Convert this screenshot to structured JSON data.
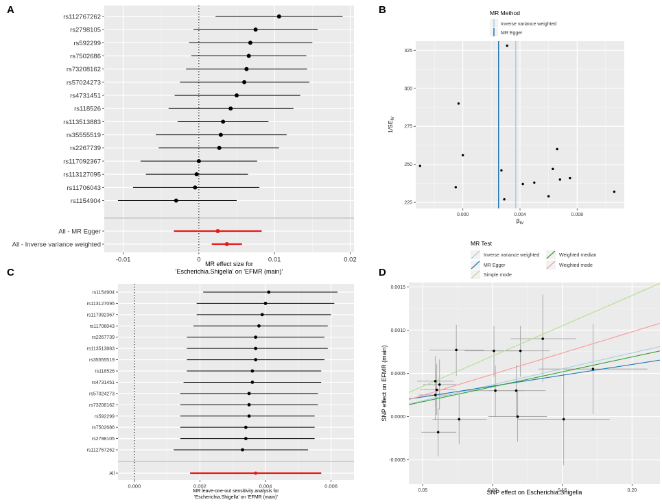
{
  "panels": {
    "A": {
      "letter": "A"
    },
    "B": {
      "letter": "B"
    },
    "C": {
      "letter": "C"
    },
    "D": {
      "letter": "D"
    }
  },
  "chart_data": [
    {
      "panel": "A",
      "type": "forest",
      "xlabel_line1": "MR effect size for",
      "xlabel_line2": "'Escherichia.Shigella' on 'EFMR (main)'",
      "xlim": [
        -0.0125,
        0.0205
      ],
      "xticks": [
        -0.01,
        0,
        0.01,
        0.02
      ],
      "xtick_labels": [
        "-0.01",
        "0",
        "0.01",
        "0.02"
      ],
      "reference_line": 0,
      "snps": [
        {
          "label": "rs112767262",
          "est": 0.0106,
          "lo": 0.0022,
          "hi": 0.019
        },
        {
          "label": "rs2798105",
          "est": 0.0075,
          "lo": -0.0007,
          "hi": 0.0157
        },
        {
          "label": "rs592299",
          "est": 0.0068,
          "lo": -0.0013,
          "hi": 0.015
        },
        {
          "label": "rs7502686",
          "est": 0.0066,
          "lo": -0.001,
          "hi": 0.0142
        },
        {
          "label": "rs73208162",
          "est": 0.0063,
          "lo": -0.0017,
          "hi": 0.0143
        },
        {
          "label": "rs57024273",
          "est": 0.006,
          "lo": -0.0025,
          "hi": 0.0146
        },
        {
          "label": "rs4731451",
          "est": 0.005,
          "lo": -0.0032,
          "hi": 0.0134
        },
        {
          "label": "rs118526",
          "est": 0.0042,
          "lo": -0.004,
          "hi": 0.0125
        },
        {
          "label": "rs113513883",
          "est": 0.0032,
          "lo": -0.0028,
          "hi": 0.0092
        },
        {
          "label": "rs35555519",
          "est": 0.0029,
          "lo": -0.0057,
          "hi": 0.0116
        },
        {
          "label": "rs2267739",
          "est": 0.0027,
          "lo": -0.0053,
          "hi": 0.0106
        },
        {
          "label": "rs117092367",
          "est": 0.0,
          "lo": -0.0077,
          "hi": 0.0077
        },
        {
          "label": "rs113127095",
          "est": -0.0003,
          "lo": -0.007,
          "hi": 0.0065
        },
        {
          "label": "rs11706043",
          "est": -0.0005,
          "lo": -0.0087,
          "hi": 0.008
        },
        {
          "label": "rs1154904",
          "est": -0.003,
          "lo": -0.0107,
          "hi": 0.005
        }
      ],
      "summary": [
        {
          "label": "All - MR Egger",
          "est": 0.0025,
          "lo": -0.0033,
          "hi": 0.0083
        },
        {
          "label": "All - Inverse variance weighted",
          "est": 0.0037,
          "lo": 0.0017,
          "hi": 0.0057
        }
      ],
      "colors": {
        "point": "#000000",
        "summary": "#e41a1c"
      }
    },
    {
      "panel": "B",
      "type": "scatter",
      "xlabel": "βIV",
      "xlabel_main": "β",
      "xlabel_sub": "IV",
      "ylabel": "1/SEIV",
      "ylabel_main": "1/SE",
      "ylabel_sub": "IV",
      "xlim": [
        -0.0033,
        0.0113
      ],
      "ylim": [
        221,
        331
      ],
      "xticks": [
        0.0,
        0.004,
        0.008
      ],
      "xtick_labels": [
        "0.000",
        "0.004",
        "0.008"
      ],
      "yticks": [
        225,
        250,
        275,
        300,
        325
      ],
      "ytick_labels": [
        "225",
        "250",
        "275",
        "300",
        "325"
      ],
      "legend": {
        "title": "MR Method",
        "entries": [
          "Inverse variance weighted",
          "MR Egger"
        ],
        "colors": [
          "#a6cee3",
          "#1f78b4"
        ]
      },
      "vlines": [
        {
          "method": "MR Egger",
          "x": 0.0025,
          "color": "#1f78b4"
        },
        {
          "method": "Inverse variance weighted",
          "x": 0.0037,
          "color": "#a6cee3"
        }
      ],
      "points": [
        {
          "x": 0.0031,
          "y": 328
        },
        {
          "x": -0.0003,
          "y": 290
        },
        {
          "x": 0.0,
          "y": 256
        },
        {
          "x": -0.003,
          "y": 249
        },
        {
          "x": 0.0027,
          "y": 246
        },
        {
          "x": 0.0066,
          "y": 260
        },
        {
          "x": 0.0063,
          "y": 247
        },
        {
          "x": 0.0075,
          "y": 241
        },
        {
          "x": 0.0068,
          "y": 240
        },
        {
          "x": 0.0042,
          "y": 237
        },
        {
          "x": 0.005,
          "y": 238
        },
        {
          "x": -0.0005,
          "y": 235
        },
        {
          "x": 0.0106,
          "y": 232
        },
        {
          "x": 0.006,
          "y": 229
        },
        {
          "x": 0.0029,
          "y": 227
        }
      ]
    },
    {
      "panel": "C",
      "type": "forest",
      "xlabel_line1": "MR leave-one-out sensitivity analysis for",
      "xlabel_line2": "'Escherichia.Shigella' on 'EFMR (main)'",
      "xlim": [
        -0.0005,
        0.0067
      ],
      "xticks": [
        0.0,
        0.002,
        0.004,
        0.006
      ],
      "xtick_labels": [
        "0.000",
        "0.002",
        "0.004",
        "0.006"
      ],
      "reference_line": 0,
      "snps": [
        {
          "label": "rs1154904",
          "est": 0.0041,
          "lo": 0.0021,
          "hi": 0.0062
        },
        {
          "label": "rs113127095",
          "est": 0.004,
          "lo": 0.0019,
          "hi": 0.0061
        },
        {
          "label": "rs117092367",
          "est": 0.0039,
          "lo": 0.0019,
          "hi": 0.006
        },
        {
          "label": "rs11706043",
          "est": 0.0038,
          "lo": 0.0018,
          "hi": 0.0059
        },
        {
          "label": "rs2267739",
          "est": 0.0037,
          "lo": 0.0016,
          "hi": 0.0058
        },
        {
          "label": "rs113513883",
          "est": 0.0037,
          "lo": 0.0016,
          "hi": 0.0059
        },
        {
          "label": "rs35555519",
          "est": 0.0037,
          "lo": 0.0016,
          "hi": 0.0058
        },
        {
          "label": "rs118526",
          "est": 0.0036,
          "lo": 0.0016,
          "hi": 0.0057
        },
        {
          "label": "rs4731451",
          "est": 0.0036,
          "lo": 0.0015,
          "hi": 0.0057
        },
        {
          "label": "rs57024273",
          "est": 0.0035,
          "lo": 0.0014,
          "hi": 0.0056
        },
        {
          "label": "rs73208162",
          "est": 0.0035,
          "lo": 0.0014,
          "hi": 0.0056
        },
        {
          "label": "rs592299",
          "est": 0.0035,
          "lo": 0.0014,
          "hi": 0.0055
        },
        {
          "label": "rs7502686",
          "est": 0.0034,
          "lo": 0.0014,
          "hi": 0.0055
        },
        {
          "label": "rs2798105",
          "est": 0.0034,
          "lo": 0.0014,
          "hi": 0.0055
        },
        {
          "label": "rs112767262",
          "est": 0.0033,
          "lo": 0.0012,
          "hi": 0.0053
        }
      ],
      "summary": [
        {
          "label": "All",
          "est": 0.0037,
          "lo": 0.0017,
          "hi": 0.0057
        }
      ],
      "colors": {
        "point": "#000000",
        "summary": "#e41a1c"
      }
    },
    {
      "panel": "D",
      "type": "scatter",
      "xlabel": "SNP effect on Escherichia.Shigella",
      "ylabel": "SNP effect on EFMR (main)",
      "xlim": [
        0.04,
        0.22
      ],
      "ylim": [
        -0.00078,
        0.00155
      ],
      "xticks": [
        0.05,
        0.1,
        0.15,
        0.2
      ],
      "xtick_labels": [
        "0.05",
        "0.10",
        "0.15",
        "0.20"
      ],
      "yticks": [
        -0.0005,
        0.0,
        0.0005,
        0.001,
        0.0015
      ],
      "ytick_labels": [
        "-0.0005",
        "0.0000",
        "0.0005",
        "0.0010",
        "0.0015"
      ],
      "legend": {
        "title": "MR Test",
        "entries": [
          "Inverse variance weighted",
          "MR Egger",
          "Simple mode",
          "Weighted median",
          "Weighted mode"
        ],
        "colors": [
          "#a6cee3",
          "#1f78b4",
          "#b2df8a",
          "#33a02c",
          "#fb9a99"
        ]
      },
      "lines": [
        {
          "method": "Inverse variance weighted",
          "slope": 0.00368,
          "intercept": 0.0,
          "color": "#a6cee3"
        },
        {
          "method": "MR Egger",
          "slope": 0.0025,
          "intercept": 0.000103,
          "color": "#1f78b4"
        },
        {
          "method": "Simple mode",
          "slope": 0.007,
          "intercept": 0.0,
          "color": "#b2df8a"
        },
        {
          "method": "Weighted median",
          "slope": 0.00345,
          "intercept": 0.0,
          "color": "#33a02c"
        },
        {
          "method": "Weighted mode",
          "slope": 0.0049,
          "intercept": 0.0,
          "color": "#fb9a99"
        }
      ],
      "points": [
        {
          "x": 0.059,
          "y": 0.00041,
          "xlo": 0.046,
          "xhi": 0.072,
          "ylo": 0.00012,
          "yhi": 0.0007
        },
        {
          "x": 0.062,
          "y": 0.00037,
          "xlo": 0.05,
          "xhi": 0.074,
          "ylo": 8e-05,
          "yhi": 0.00066
        },
        {
          "x": 0.06,
          "y": 0.00031,
          "xlo": 0.048,
          "xhi": 0.073,
          "ylo": 2e-05,
          "yhi": 0.00061
        },
        {
          "x": 0.059,
          "y": 0.00025,
          "xlo": 0.047,
          "xhi": 0.071,
          "ylo": -4e-05,
          "yhi": 0.00054
        },
        {
          "x": 0.061,
          "y": -0.00018,
          "xlo": 0.049,
          "xhi": 0.074,
          "ylo": -0.00046,
          "yhi": 0.0001
        },
        {
          "x": 0.074,
          "y": 0.00077,
          "xlo": 0.055,
          "xhi": 0.094,
          "ylo": 0.00047,
          "yhi": 0.00106
        },
        {
          "x": 0.076,
          "y": -3e-05,
          "xlo": 0.057,
          "xhi": 0.096,
          "ylo": -0.00032,
          "yhi": 0.00026
        },
        {
          "x": 0.101,
          "y": 0.00076,
          "xlo": 0.08,
          "xhi": 0.121,
          "ylo": 0.00046,
          "yhi": 0.00105
        },
        {
          "x": 0.102,
          "y": 0.0003,
          "xlo": 0.081,
          "xhi": 0.123,
          "ylo": 0.0,
          "yhi": 0.00059
        },
        {
          "x": 0.117,
          "y": 0.0003,
          "xlo": 0.097,
          "xhi": 0.138,
          "ylo": 0.0,
          "yhi": 0.0006
        },
        {
          "x": 0.12,
          "y": 0.00076,
          "xlo": 0.099,
          "xhi": 0.141,
          "ylo": 0.00046,
          "yhi": 0.00105
        },
        {
          "x": 0.118,
          "y": 0.0,
          "xlo": 0.097,
          "xhi": 0.139,
          "ylo": -0.00029,
          "yhi": 0.00029
        },
        {
          "x": 0.136,
          "y": 0.0009,
          "xlo": 0.113,
          "xhi": 0.16,
          "ylo": 0.0004,
          "yhi": 0.00141
        },
        {
          "x": 0.151,
          "y": -3e-05,
          "xlo": 0.118,
          "xhi": 0.184,
          "ylo": -0.00056,
          "yhi": 0.0005
        },
        {
          "x": 0.172,
          "y": 0.00055,
          "xlo": 0.133,
          "xhi": 0.211,
          "ylo": 3e-05,
          "yhi": 0.00107
        }
      ]
    }
  ]
}
